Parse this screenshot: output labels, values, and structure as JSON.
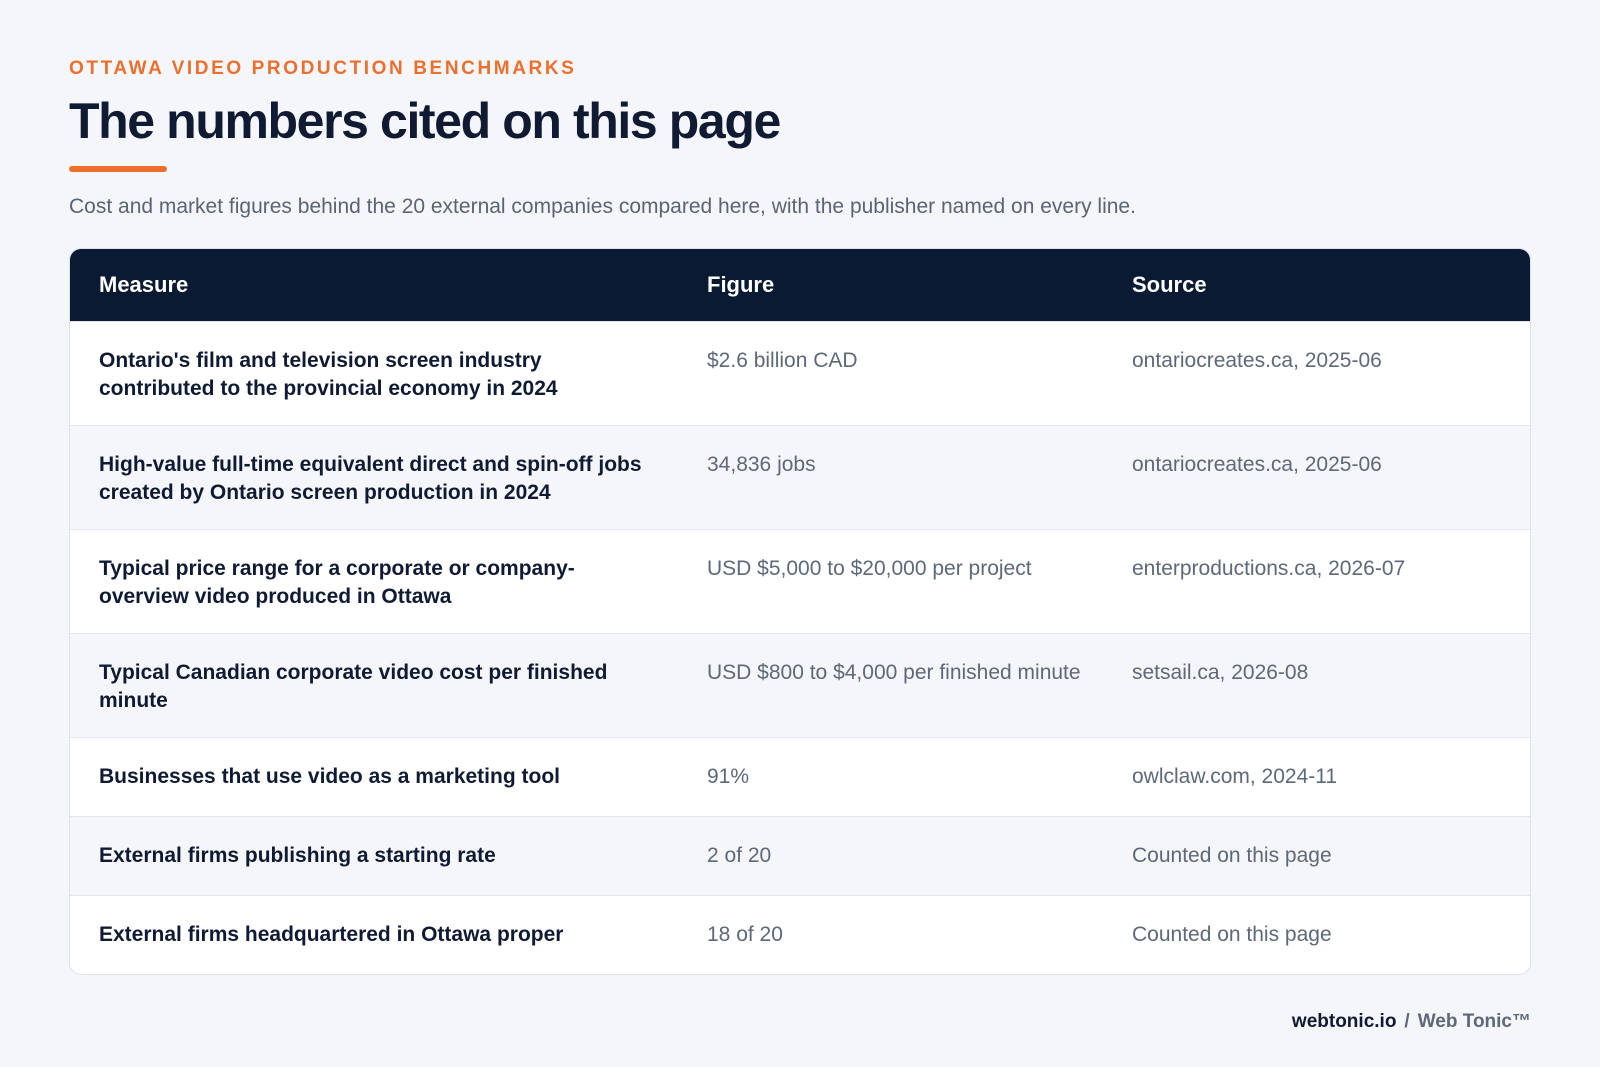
{
  "header": {
    "eyebrow": "OTTAWA VIDEO PRODUCTION BENCHMARKS",
    "title": "The numbers cited on this page",
    "subtitle": "Cost and market figures behind the 20 external companies compared here, with the publisher named on every line."
  },
  "table": {
    "columns": [
      "Measure",
      "Figure",
      "Source"
    ],
    "rows": [
      {
        "measure": "Ontario's film and television screen industry contributed to the provincial economy in 2024",
        "figure": "$2.6 billion CAD",
        "source": "ontariocreates.ca, 2025-06"
      },
      {
        "measure": "High-value full-time equivalent direct and spin-off jobs created by Ontario screen production in 2024",
        "figure": "34,836 jobs",
        "source": "ontariocreates.ca, 2025-06"
      },
      {
        "measure": "Typical price range for a corporate or company-overview video produced in Ottawa",
        "figure": "USD $5,000 to $20,000 per project",
        "source": "enterproductions.ca, 2026-07"
      },
      {
        "measure": "Typical Canadian corporate video cost per finished minute",
        "figure": "USD $800 to $4,000 per finished minute",
        "source": "setsail.ca, 2026-08"
      },
      {
        "measure": "Businesses that use video as a marketing tool",
        "figure": "91%",
        "source": "owlclaw.com, 2024-11"
      },
      {
        "measure": "External firms publishing a starting rate",
        "figure": "2 of 20",
        "source": "Counted on this page"
      },
      {
        "measure": "External firms headquartered in Ottawa proper",
        "figure": "18 of 20",
        "source": "Counted on this page"
      }
    ]
  },
  "footer": {
    "site": "webtonic.io",
    "separator": "/",
    "brand": "Web Tonic™"
  },
  "colors": {
    "accent": "#ec6f2d",
    "header_bg": "#0b1a33",
    "page_bg": "#f5f6f9"
  }
}
